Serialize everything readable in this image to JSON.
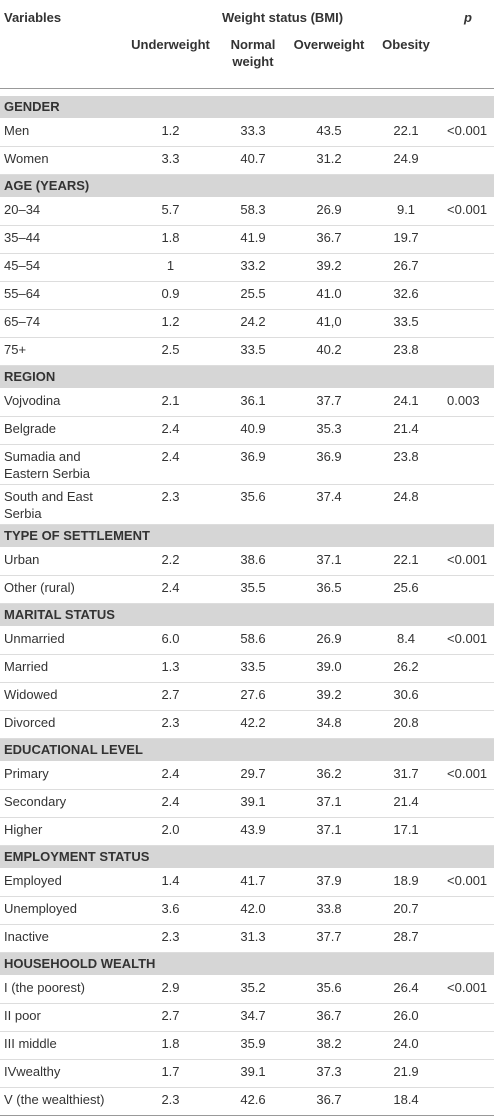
{
  "header": {
    "variables": "Variables",
    "group": "Weight status (BMI)",
    "p": "p",
    "columns": [
      "Underweight",
      "Normal weight",
      "Overweight",
      "Obesity"
    ]
  },
  "sections": [
    {
      "title": "GENDER",
      "rows": [
        {
          "label": "Men",
          "values": [
            "1.2",
            "33.3",
            "43.5",
            "22.1"
          ],
          "p": "<0.001"
        },
        {
          "label": "Women",
          "values": [
            "3.3",
            "40.7",
            "31.2",
            "24.9"
          ]
        }
      ]
    },
    {
      "title": "AGE (YEARS)",
      "rows": [
        {
          "label": "20–34",
          "values": [
            "5.7",
            "58.3",
            "26.9",
            "9.1"
          ],
          "p": "<0.001"
        },
        {
          "label": "35–44",
          "values": [
            "1.8",
            "41.9",
            "36.7",
            "19.7"
          ]
        },
        {
          "label": "45–54",
          "values": [
            "1",
            "33.2",
            "39.2",
            "26.7"
          ]
        },
        {
          "label": "55–64",
          "values": [
            "0.9",
            "25.5",
            "41.0",
            "32.6"
          ]
        },
        {
          "label": "65–74",
          "values": [
            "1.2",
            "24.2",
            "41,0",
            "33.5"
          ]
        },
        {
          "label": "75+",
          "values": [
            "2.5",
            "33.5",
            "40.2",
            "23.8"
          ]
        }
      ]
    },
    {
      "title": "REGION",
      "rows": [
        {
          "label": "Vojvodina",
          "values": [
            "2.1",
            "36.1",
            "37.7",
            "24.1"
          ],
          "p": "0.003"
        },
        {
          "label": "Belgrade",
          "values": [
            "2.4",
            "40.9",
            "35.3",
            "21.4"
          ]
        },
        {
          "label": "Sumadia and Eastern Serbia",
          "values": [
            "2.4",
            "36.9",
            "36.9",
            "23.8"
          ]
        },
        {
          "label": "South and East Serbia",
          "values": [
            "2.3",
            "35.6",
            "37.4",
            "24.8"
          ]
        }
      ]
    },
    {
      "title": "TYPE OF SETTLEMENT",
      "rows": [
        {
          "label": "Urban",
          "values": [
            "2.2",
            "38.6",
            "37.1",
            "22.1"
          ],
          "p": "<0.001"
        },
        {
          "label": "Other (rural)",
          "values": [
            "2.4",
            "35.5",
            "36.5",
            "25.6"
          ]
        }
      ]
    },
    {
      "title": "MARITAL STATUS",
      "rows": [
        {
          "label": "Unmarried",
          "values": [
            "6.0",
            "58.6",
            "26.9",
            "8.4"
          ],
          "p": "<0.001"
        },
        {
          "label": "Married",
          "values": [
            "1.3",
            "33.5",
            "39.0",
            "26.2"
          ]
        },
        {
          "label": "Widowed",
          "values": [
            "2.7",
            "27.6",
            "39.2",
            "30.6"
          ]
        },
        {
          "label": "Divorced",
          "values": [
            "2.3",
            "42.2",
            "34.8",
            "20.8"
          ]
        }
      ]
    },
    {
      "title": "EDUCATIONAL LEVEL",
      "rows": [
        {
          "label": "Primary",
          "values": [
            "2.4",
            "29.7",
            "36.2",
            "31.7"
          ],
          "p": "<0.001"
        },
        {
          "label": "Secondary",
          "values": [
            "2.4",
            "39.1",
            "37.1",
            "21.4"
          ]
        },
        {
          "label": "Higher",
          "values": [
            "2.0",
            "43.9",
            "37.1",
            "17.1"
          ]
        }
      ]
    },
    {
      "title": "EMPLOYMENT STATUS",
      "rows": [
        {
          "label": "Employed",
          "values": [
            "1.4",
            "41.7",
            "37.9",
            "18.9"
          ],
          "p": "<0.001"
        },
        {
          "label": "Unemployed",
          "values": [
            "3.6",
            "42.0",
            "33.8",
            "20.7"
          ]
        },
        {
          "label": "Inactive",
          "values": [
            "2.3",
            "31.3",
            "37.7",
            "28.7"
          ]
        }
      ]
    },
    {
      "title": "HOUSEHOOLD WEALTH",
      "rows": [
        {
          "label": "I (the poorest)",
          "values": [
            "2.9",
            "35.2",
            "35.6",
            "26.4"
          ],
          "p": "<0.001"
        },
        {
          "label": "II poor",
          "values": [
            "2.7",
            "34.7",
            "36.7",
            "26.0"
          ]
        },
        {
          "label": "III middle",
          "values": [
            "1.8",
            "35.9",
            "38.2",
            "24.0"
          ]
        },
        {
          "label": "IVwealthy",
          "values": [
            "1.7",
            "39.1",
            "37.3",
            "21.9"
          ]
        },
        {
          "label": "V (the wealthiest)",
          "values": [
            "2.3",
            "42.6",
            "36.7",
            "18.4"
          ]
        }
      ]
    }
  ]
}
